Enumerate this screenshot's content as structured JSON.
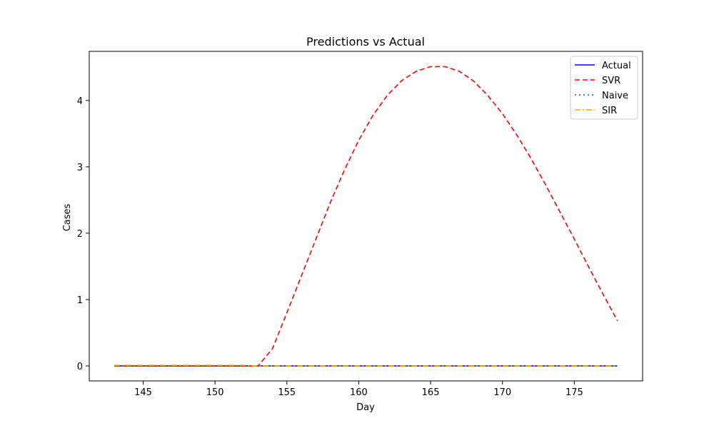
{
  "chart_data": {
    "type": "line",
    "title": "Predictions vs Actual",
    "xlabel": "Day",
    "ylabel": "Cases",
    "xlim": [
      141.25,
      179.75
    ],
    "ylim": [
      -0.226,
      4.74
    ],
    "xticks": [
      145,
      150,
      155,
      160,
      165,
      170,
      175
    ],
    "yticks": [
      0,
      1,
      2,
      3,
      4
    ],
    "x": [
      143,
      144,
      145,
      146,
      147,
      148,
      149,
      150,
      151,
      152,
      153,
      154,
      155,
      156,
      157,
      158,
      159,
      160,
      161,
      162,
      163,
      164,
      165,
      166,
      167,
      168,
      169,
      170,
      171,
      172,
      173,
      174,
      175,
      176,
      177,
      178
    ],
    "series": [
      {
        "name": "Actual",
        "color": "#0000ff",
        "dash": "solid",
        "values": [
          0,
          0,
          0,
          0,
          0,
          0,
          0,
          0,
          0,
          0,
          0,
          0,
          0,
          0,
          0,
          0,
          0,
          0,
          0,
          0,
          0,
          0,
          0,
          0,
          0,
          0,
          0,
          0,
          0,
          0,
          0,
          0,
          0,
          0,
          0,
          0
        ]
      },
      {
        "name": "SVR",
        "color": "#ff0000",
        "dash": "dashed",
        "values": [
          0,
          0,
          0,
          0,
          0,
          0,
          0,
          0,
          0,
          0,
          0,
          0.26,
          0.8,
          1.35,
          1.9,
          2.45,
          2.95,
          3.4,
          3.78,
          4.08,
          4.3,
          4.44,
          4.51,
          4.51,
          4.44,
          4.29,
          4.07,
          3.8,
          3.48,
          3.12,
          2.73,
          2.32,
          1.91,
          1.49,
          1.08,
          0.68
        ]
      },
      {
        "name": "Naive",
        "color": "#008000",
        "dash": "dotted",
        "values": [
          0,
          0,
          0,
          0,
          0,
          0,
          0,
          0,
          0,
          0,
          0,
          0,
          0,
          0,
          0,
          0,
          0,
          0,
          0,
          0,
          0,
          0,
          0,
          0,
          0,
          0,
          0,
          0,
          0,
          0,
          0,
          0,
          0,
          0,
          0,
          0
        ]
      },
      {
        "name": "SIR",
        "color": "#ffa500",
        "dash": "dashdot",
        "values": [
          0.01,
          0.01,
          0.01,
          0.01,
          0.01,
          0.01,
          0.01,
          0.01,
          0.01,
          0.01,
          0.0,
          0,
          0,
          0,
          0,
          0,
          0,
          0,
          0,
          0,
          0,
          0,
          0,
          0,
          0,
          0,
          0,
          0,
          0,
          0,
          0,
          0,
          0,
          0,
          0,
          0
        ]
      }
    ],
    "legend_position": "top-right",
    "grid": false
  }
}
